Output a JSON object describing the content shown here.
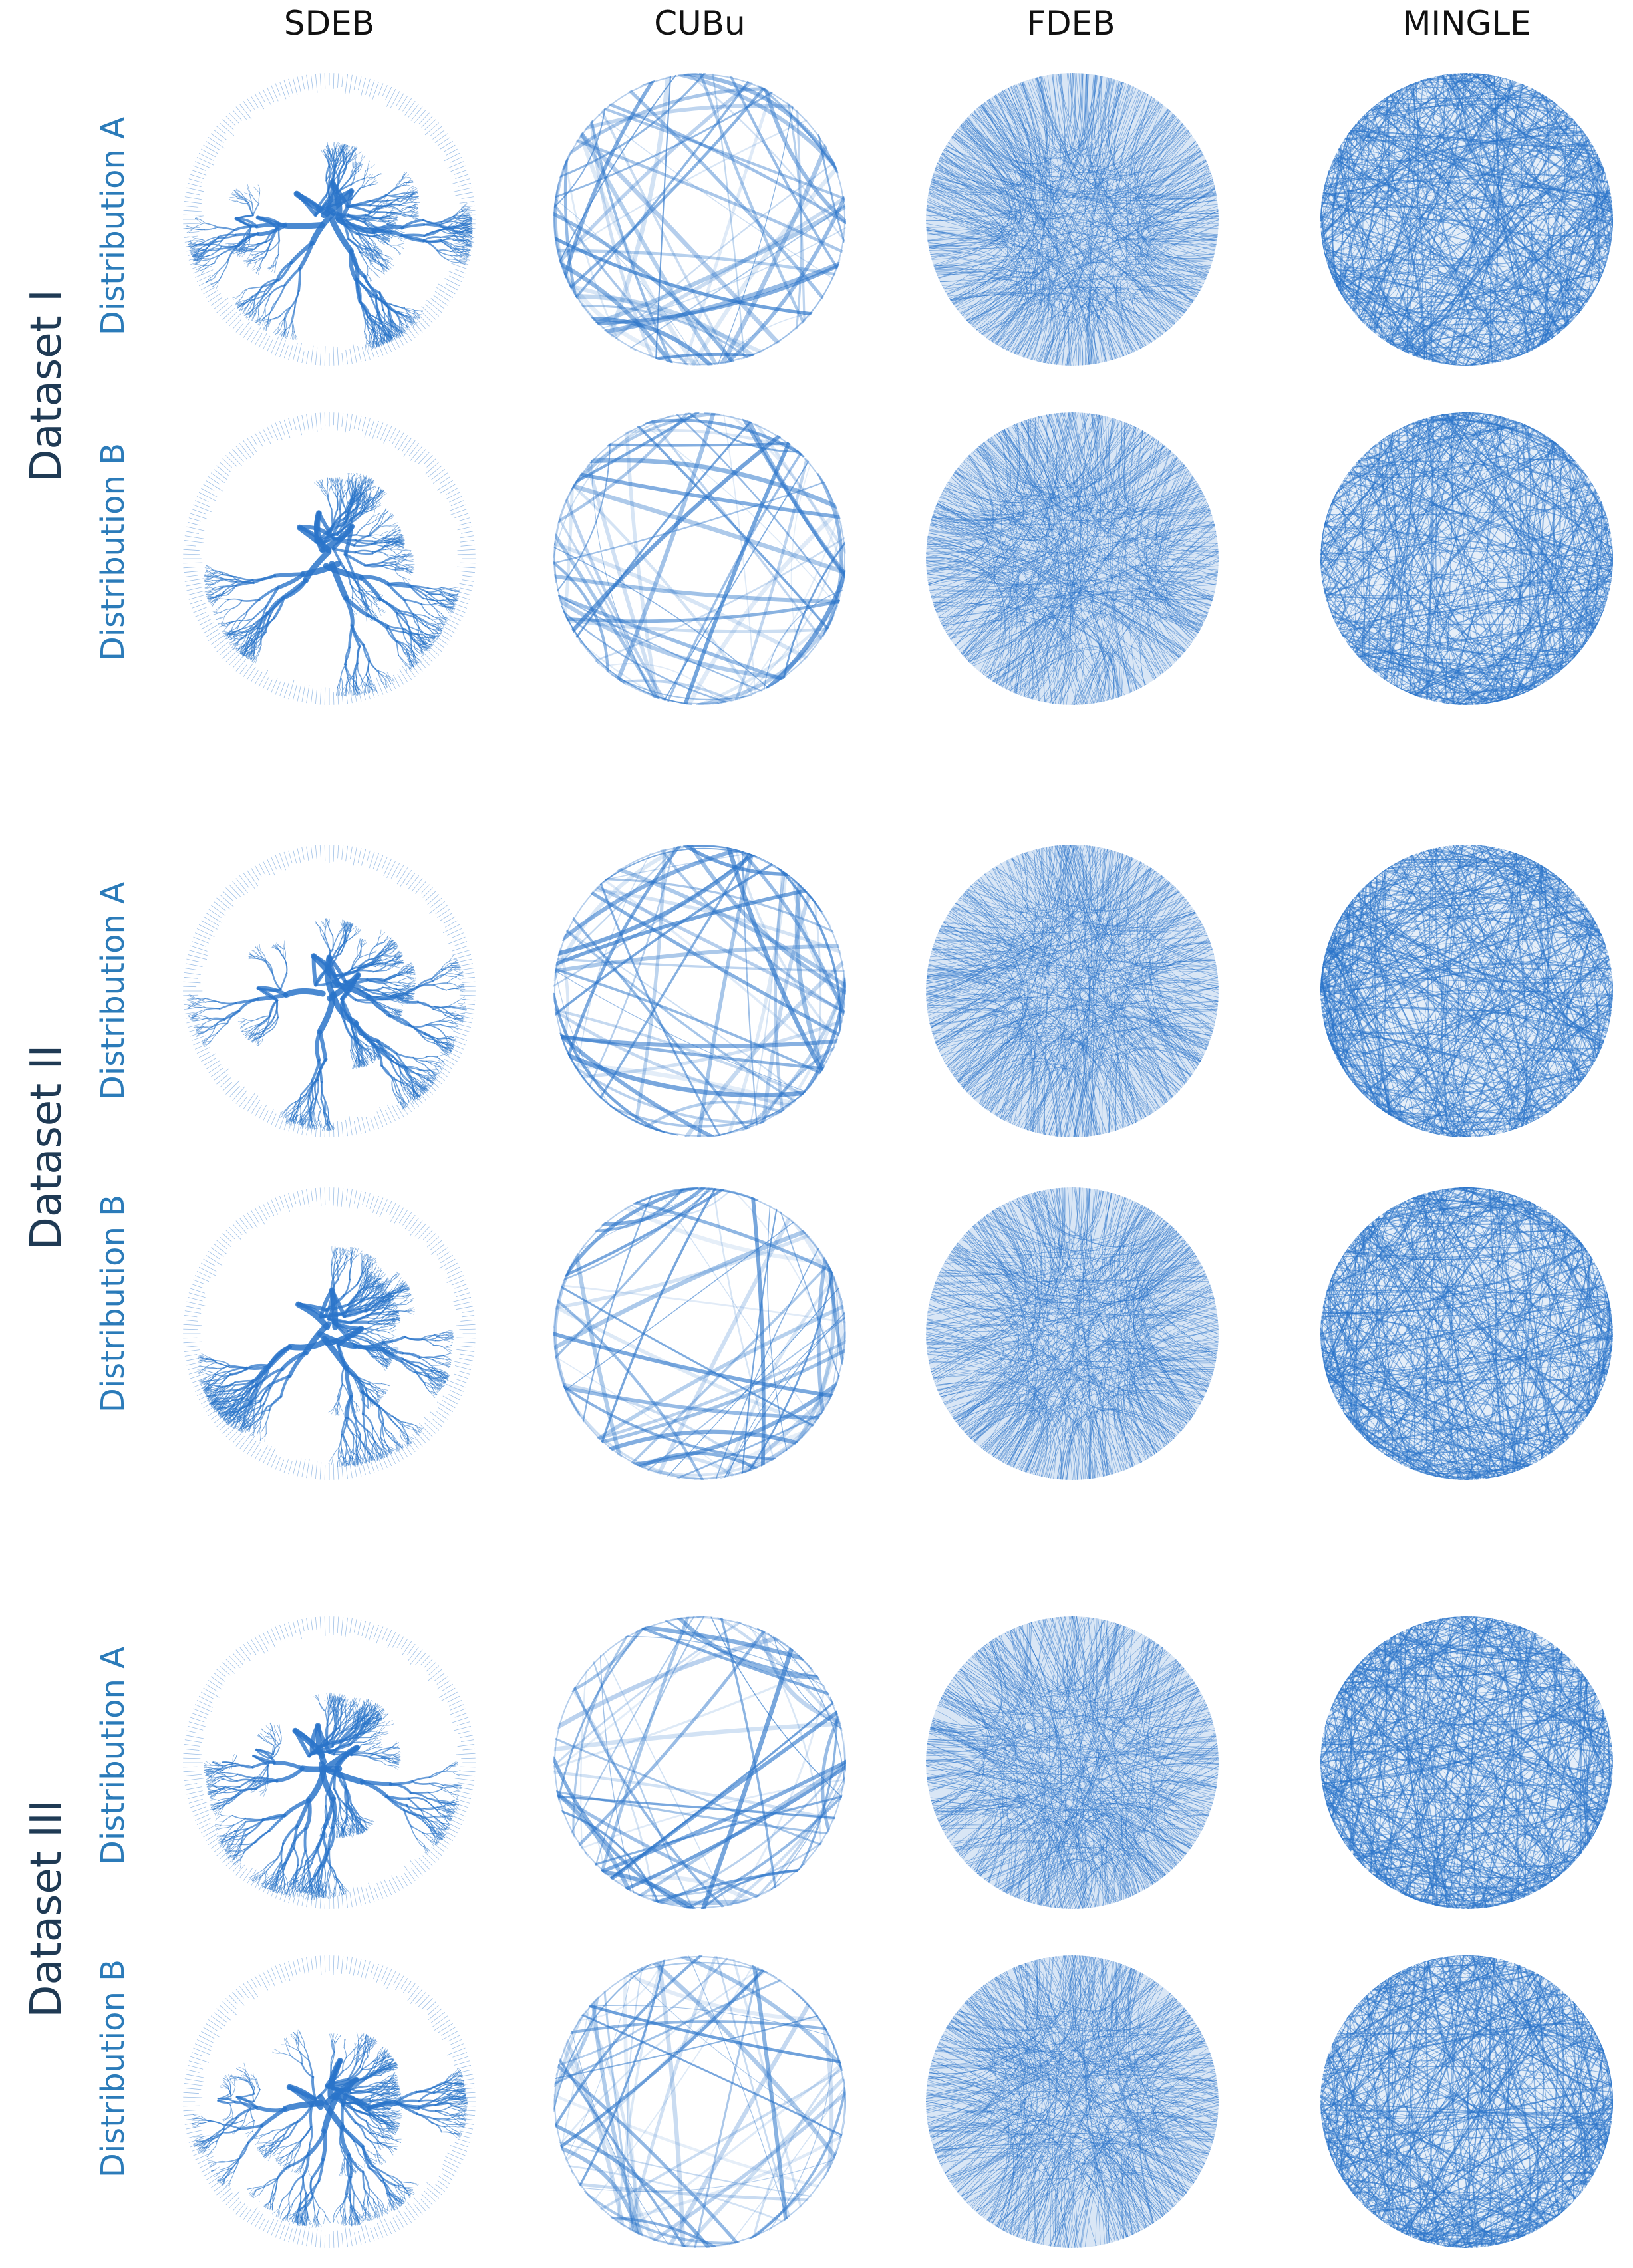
{
  "columns": [
    "SDEB",
    "CUBu",
    "FDEB",
    "MINGLE"
  ],
  "datasets": [
    {
      "label": "Dataset I",
      "distributions": [
        "Distribution A",
        "Distribution B"
      ]
    },
    {
      "label": "Dataset II",
      "distributions": [
        "Distribution A",
        "Distribution B"
      ]
    },
    {
      "label": "Dataset III",
      "distributions": [
        "Distribution A",
        "Distribution B"
      ]
    }
  ],
  "colors": {
    "edge": "#2a74c9",
    "edge_light": "#b9d4ef",
    "column_header": "#111111",
    "dataset_label": "#1f3a54",
    "distribution_label": "#2b7bb9"
  }
}
